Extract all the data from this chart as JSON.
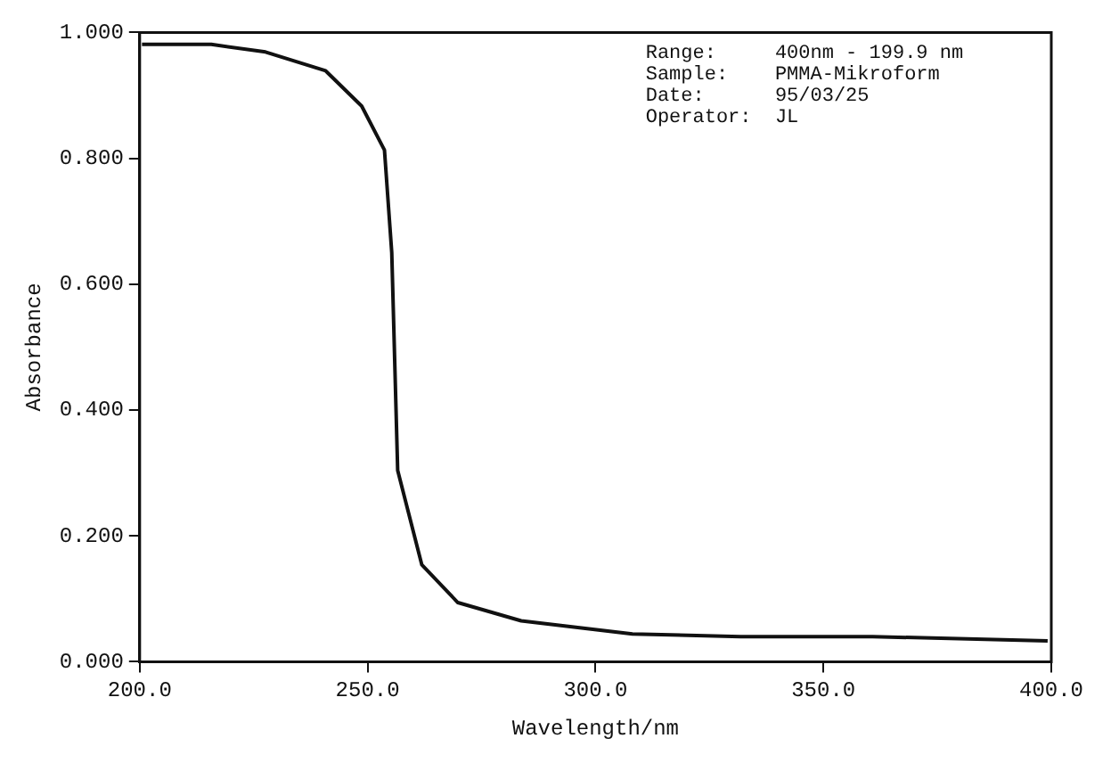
{
  "chart_data": {
    "type": "line",
    "xlabel": "Wavelength/nm",
    "ylabel": "Absorbance",
    "x": [
      200.5,
      215.7,
      227.6,
      240.8,
      248.7,
      253.7,
      255.3,
      256.6,
      261.9,
      269.8,
      283.7,
      308.1,
      331.9,
      360.8,
      399.2
    ],
    "series": [
      {
        "color": "#111111",
        "values": [
          0.981,
          0.981,
          0.969,
          0.939,
          0.883,
          0.813,
          0.65,
          0.304,
          0.154,
          0.094,
          0.065,
          0.044,
          0.04,
          0.04,
          0.033
        ]
      }
    ],
    "xlim": [
      200,
      400
    ],
    "xticks": [
      {
        "value": 200,
        "label": "200.0"
      },
      {
        "value": 250,
        "label": "250.0"
      },
      {
        "value": 300,
        "label": "300.0"
      },
      {
        "value": 350,
        "label": "350.0"
      },
      {
        "value": 400,
        "label": "400.0"
      }
    ],
    "ylim": [
      0,
      1
    ],
    "yticks": [
      {
        "value": 0,
        "label": "0.000"
      },
      {
        "value": 0.2,
        "label": "0.200"
      },
      {
        "value": 0.4,
        "label": "0.400"
      },
      {
        "value": 0.6,
        "label": "0.600"
      },
      {
        "value": 0.8,
        "label": "0.800"
      },
      {
        "value": 1,
        "label": "1.000"
      }
    ],
    "annotations": [
      "Range:     400nm - 199.9 nm",
      "Sample:    PMMA-Mikroform",
      "Date:      95/03/25",
      "Operator:  JL"
    ],
    "grid": false,
    "legend": false,
    "marker": "none",
    "line_style": "solid"
  }
}
